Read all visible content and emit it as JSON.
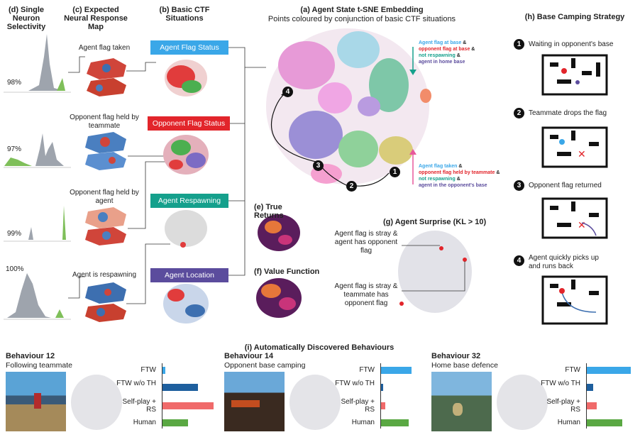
{
  "headers": {
    "d": "(d) Single Neuron Selectivity",
    "c": "(c) Expected Neural Response Map",
    "b": "(b) Basic CTF Situations",
    "a_title": "(a) Agent State t-SNE Embedding",
    "a_sub": "Points coloured by conjunction of basic CTF situations",
    "h": "(h) Base Camping Strategy",
    "e": "(e) True Returns",
    "f": "(f) Value Function",
    "g": "(g) Agent Surprise (KL > 10)",
    "i": "(i) Automatically Discovered Behaviours"
  },
  "neurons": [
    {
      "percent": "98%",
      "label": "Agent flag taken"
    },
    {
      "percent": "97%",
      "label": "Opponent flag held by teammate"
    },
    {
      "percent": "99%",
      "label": "Opponent flag held by agent"
    },
    {
      "percent": "100%",
      "label": "Agent is respawning"
    }
  ],
  "situations": [
    {
      "label": "Agent Flag Status",
      "color": "#3aa7e8"
    },
    {
      "label": "Opponent Flag Status",
      "color": "#e2252b"
    },
    {
      "label": "Agent Respawning",
      "color": "#15a08c"
    },
    {
      "label": "Agent Location",
      "color": "#5b4c9d"
    }
  ],
  "legend_top": [
    {
      "text": "Agent flag at base",
      "color": "#3aa7e8",
      "suffix": "&"
    },
    {
      "text": "opponent flag at base",
      "color": "#e2252b",
      "suffix": "&"
    },
    {
      "text": "not respawning",
      "color": "#15a08c",
      "suffix": "&"
    },
    {
      "text": "agent in home base",
      "color": "#5b4c9d",
      "suffix": ""
    }
  ],
  "legend_bottom": [
    {
      "text": "Agent flag taken",
      "color": "#3aa7e8",
      "suffix": "&"
    },
    {
      "text": "opponent flag held by teammate",
      "color": "#e2252b",
      "suffix": "&"
    },
    {
      "text": "not respawning",
      "color": "#15a08c",
      "suffix": "&"
    },
    {
      "text": "agent in the opponent's base",
      "color": "#5b4c9d",
      "suffix": ""
    }
  ],
  "camping": [
    {
      "num": "1",
      "text": "Waiting in opponent's base"
    },
    {
      "num": "2",
      "text": "Teammate drops the flag"
    },
    {
      "num": "3",
      "text": "Opponent flag returned"
    },
    {
      "num": "4",
      "text": "Agent quickly picks up and runs back"
    }
  ],
  "path_nums": [
    "1",
    "2",
    "3",
    "4"
  ],
  "surprise": [
    "Agent flag is stray & agent has opponent flag",
    "Agent flag is stray & teammate has opponent flag"
  ],
  "behaviours": [
    {
      "title": "Behaviour 12",
      "subtitle": "Following teammate",
      "values": [
        0.05,
        0.7,
        1.0,
        0.5
      ]
    },
    {
      "title": "Behaviour 14",
      "subtitle": "Opponent base camping",
      "values": [
        0.85,
        0.05,
        0.12,
        0.78
      ]
    },
    {
      "title": "Behaviour 32",
      "subtitle": "Home base defence",
      "values": [
        1.0,
        0.15,
        0.22,
        0.8
      ]
    }
  ],
  "bar_labels": [
    "FTW",
    "FTW w/o TH",
    "Self-play + RS",
    "Human"
  ],
  "bar_colors": [
    "#3aa7e8",
    "#1e5f9e",
    "#f06a6a",
    "#5aa843"
  ]
}
